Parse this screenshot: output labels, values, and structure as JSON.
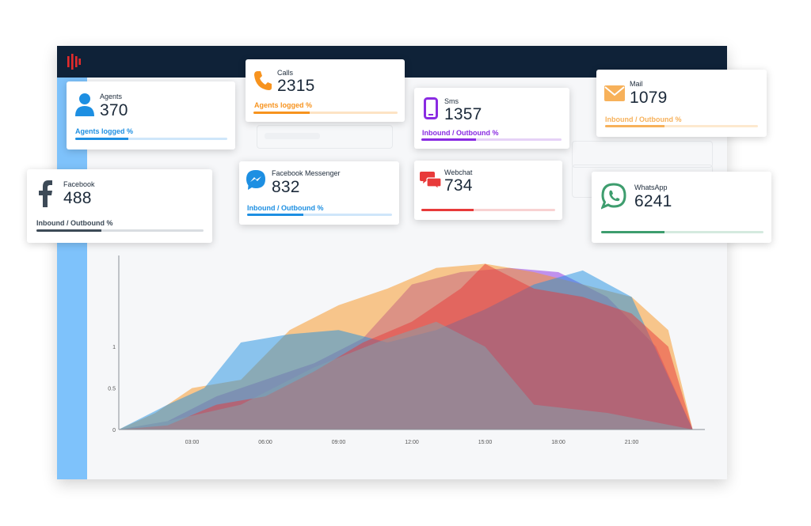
{
  "colors": {
    "header": "#0f2238",
    "sidebar": "#7ec2fb",
    "brand_red": "#e32b2b",
    "agents": "#1d8fe2",
    "calls": "#f7931e",
    "sms": "#8a2be2",
    "mail": "#f7b15a",
    "facebook": "#3d4a57",
    "messenger": "#1d8fe2",
    "webchat": "#e83a3a",
    "whatsapp": "#3e9d6e"
  },
  "header": {
    "logo_icon": "brand-logo-icon"
  },
  "cards": {
    "agents": {
      "label": "Agents",
      "value": "370",
      "sub": "Agents logged %",
      "icon": "user-icon",
      "progress": 0.35
    },
    "calls": {
      "label": "Calls",
      "value": "2315",
      "sub": "Agents logged %",
      "icon": "phone-icon",
      "progress": 0.39
    },
    "sms": {
      "label": "Sms",
      "value": "1357",
      "sub": "Inbound / Outbound %",
      "icon": "mobile-icon",
      "progress": 0.39
    },
    "mail": {
      "label": "Mail",
      "value": "1079",
      "sub": "Inbound / Outbound %",
      "icon": "envelope-icon",
      "progress": 0.39
    },
    "facebook": {
      "label": "Facebook",
      "value": "488",
      "sub": "Inbound / Outbound %",
      "icon": "facebook-icon",
      "progress": 0.39
    },
    "messenger": {
      "label": "Facebook Messenger",
      "value": "832",
      "sub": "Inbound / Outbound %",
      "icon": "messenger-icon",
      "progress": 0.39
    },
    "webchat": {
      "label": "Webchat",
      "value": "734",
      "sub": "",
      "icon": "chat-bubbles-icon",
      "progress": 0.39
    },
    "whatsapp": {
      "label": "WhatsApp",
      "value": "6241",
      "sub": "",
      "icon": "whatsapp-icon",
      "progress": 0.39
    }
  },
  "chart_data": {
    "type": "area",
    "x_ticks": [
      "03:00",
      "06:00",
      "09:00",
      "12:00",
      "15:00",
      "18:00",
      "21:00"
    ],
    "y_ticks": [
      "0",
      "0.5",
      "1"
    ],
    "xlim": [
      0,
      24
    ],
    "ylim": [
      0,
      2.1
    ],
    "series": [
      {
        "color": "#8a2be2",
        "x": [
          0,
          2,
          4,
          6,
          8,
          10,
          12,
          14,
          16,
          18,
          20,
          22,
          23.5
        ],
        "y": [
          0,
          0.1,
          0.4,
          0.6,
          0.8,
          1.1,
          1.75,
          1.9,
          1.95,
          1.9,
          1.6,
          1.0,
          0
        ]
      },
      {
        "color": "#f7931e",
        "x": [
          0,
          1.5,
          3,
          5,
          7,
          9,
          11,
          13,
          15,
          17,
          19,
          21,
          22.5,
          23.5
        ],
        "y": [
          0,
          0.2,
          0.5,
          0.6,
          1.2,
          1.5,
          1.7,
          1.95,
          2.0,
          1.9,
          1.75,
          1.6,
          1.2,
          0
        ]
      },
      {
        "color": "#1d8fe2",
        "x": [
          0,
          2,
          3.5,
          5,
          7,
          9,
          11,
          13,
          15,
          17,
          19,
          21,
          23.5
        ],
        "y": [
          0,
          0.3,
          0.5,
          1.05,
          1.15,
          1.2,
          1.05,
          1.2,
          1.45,
          1.75,
          1.92,
          1.6,
          0
        ]
      },
      {
        "color": "#e83a3a",
        "x": [
          0,
          2,
          4,
          6,
          8,
          10,
          12,
          14,
          15,
          17,
          19,
          21,
          22.5,
          23.5
        ],
        "y": [
          0,
          0.05,
          0.3,
          0.4,
          0.7,
          1.05,
          1.3,
          1.7,
          2.0,
          1.7,
          1.6,
          1.4,
          1.0,
          0
        ]
      },
      {
        "color": "#7fa6b0",
        "x": [
          0,
          2,
          5,
          8,
          11,
          13,
          15,
          17,
          20,
          23.5
        ],
        "y": [
          0,
          0.1,
          0.3,
          0.75,
          1.1,
          1.3,
          1.0,
          0.3,
          0.2,
          0
        ]
      }
    ]
  }
}
